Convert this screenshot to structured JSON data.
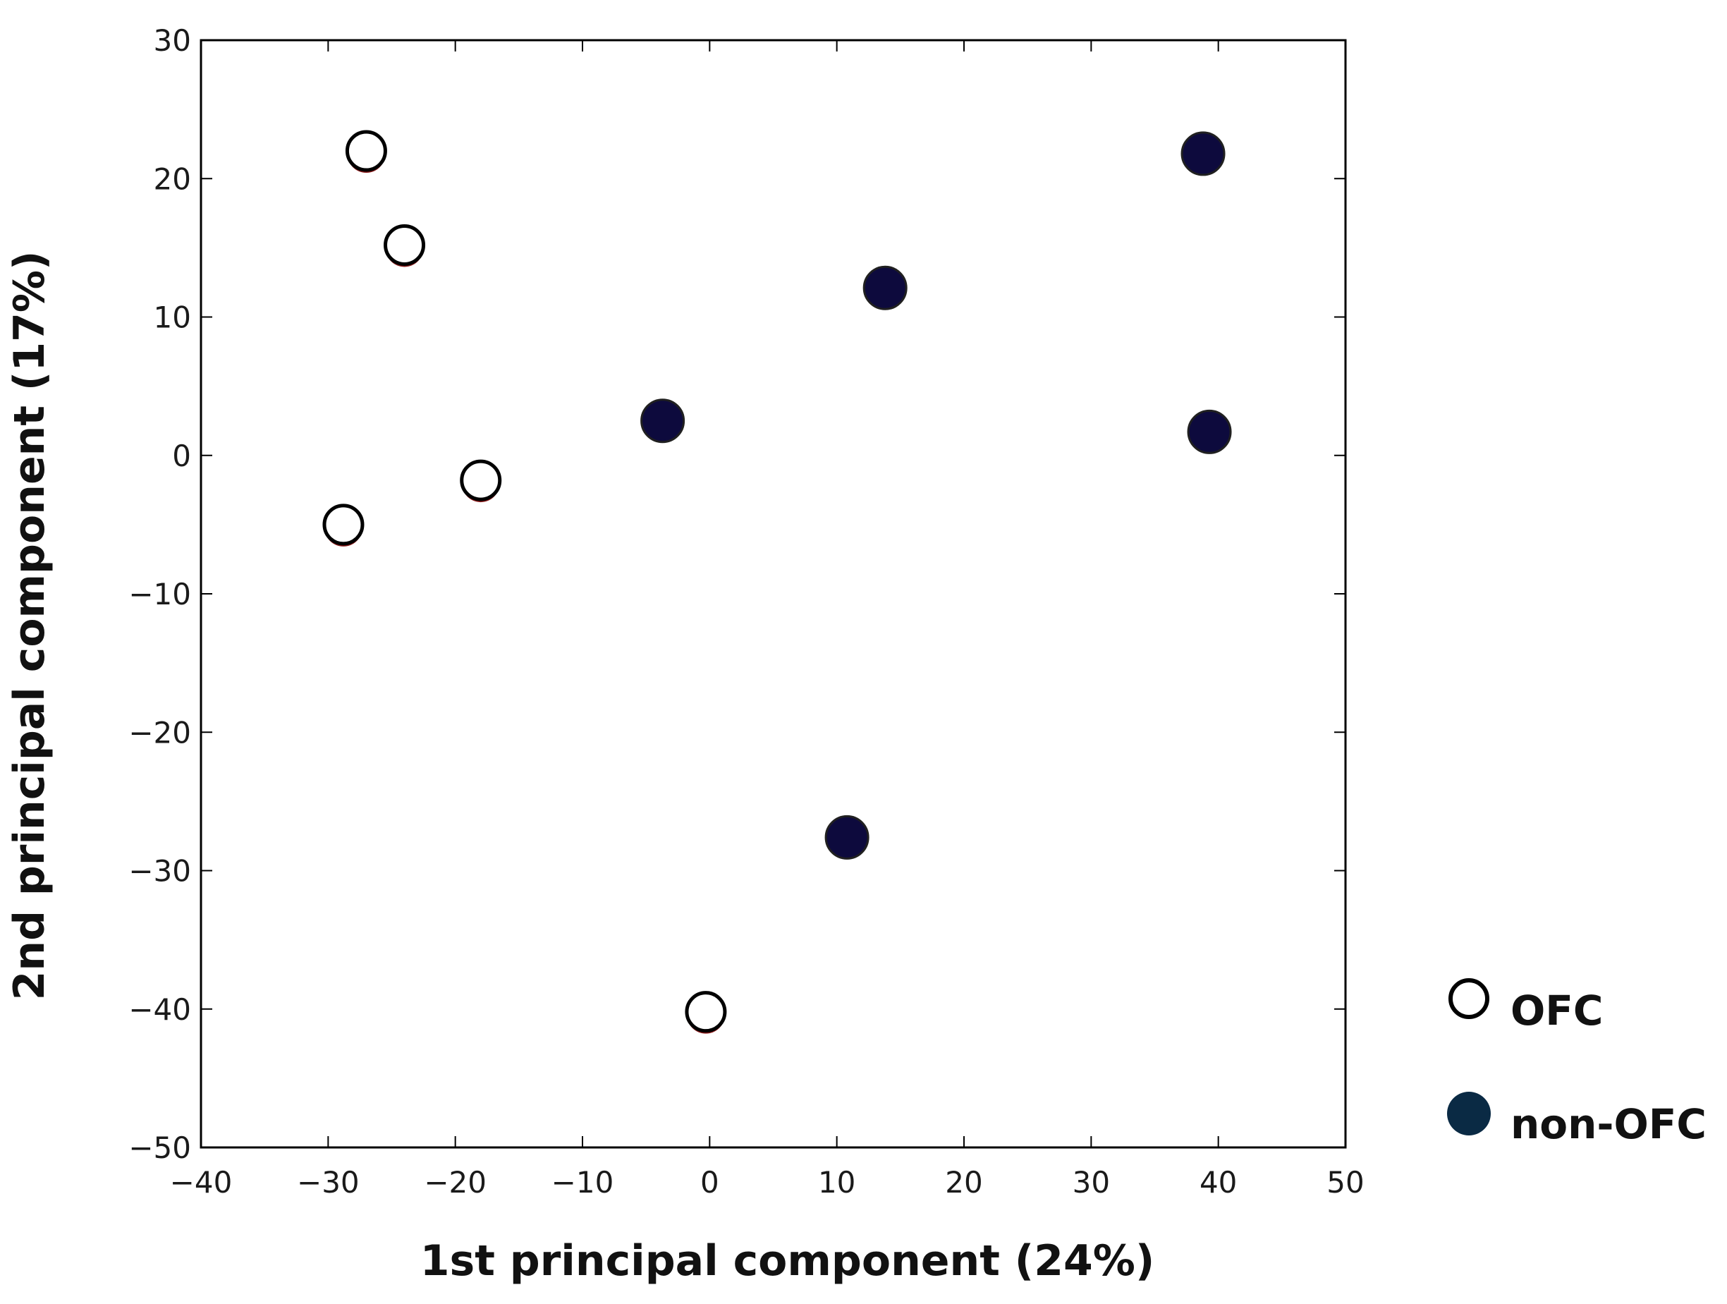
{
  "chart_data": {
    "type": "scatter",
    "xlabel": "1st principal component (24%)",
    "ylabel": "2nd principal component (17%)",
    "xlim": [
      -40,
      50
    ],
    "ylim": [
      -50,
      30
    ],
    "xticks": [
      -40,
      -30,
      -20,
      -10,
      0,
      10,
      20,
      30,
      40,
      50
    ],
    "yticks": [
      30,
      20,
      10,
      0,
      -10,
      -20,
      -30,
      -40,
      -50
    ],
    "xtick_labels": [
      "−40",
      "−30",
      "−20",
      "−10",
      "0",
      "10",
      "20",
      "30",
      "40",
      "50"
    ],
    "ytick_labels": [
      "30",
      "20",
      "10",
      "0",
      "−10",
      "−20",
      "−30",
      "−40",
      "−50"
    ],
    "grid": false,
    "legend_position": "outside-right-bottom",
    "series": [
      {
        "name": "OFC",
        "marker": "open-circle",
        "fill_color": "#ffffff",
        "edge_color": "#000000",
        "shadow_color": "#8b1a1a",
        "points": [
          {
            "x": -27,
            "y": 22
          },
          {
            "x": -24,
            "y": 15.2
          },
          {
            "x": -18,
            "y": -1.8
          },
          {
            "x": -28.8,
            "y": -5
          },
          {
            "x": -0.3,
            "y": -40.2
          }
        ]
      },
      {
        "name": "non-OFC",
        "marker": "filled-circle",
        "fill_color": "#0d0a3d",
        "edge_color": "#202020",
        "legend_color": "#0a2a44",
        "points": [
          {
            "x": 38.8,
            "y": 21.8
          },
          {
            "x": 13.8,
            "y": 12.1
          },
          {
            "x": -3.7,
            "y": 2.5
          },
          {
            "x": 39.3,
            "y": 1.7
          },
          {
            "x": 10.8,
            "y": -27.6
          }
        ]
      }
    ]
  }
}
